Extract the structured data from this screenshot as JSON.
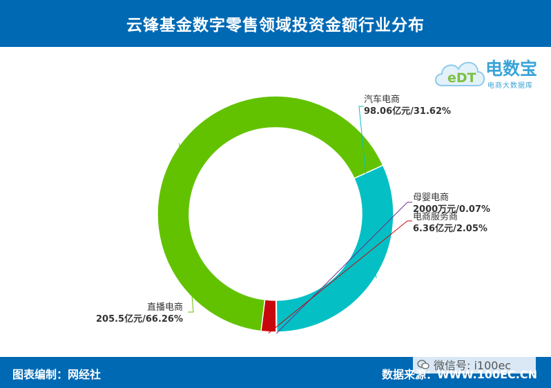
{
  "colors": {
    "header_bg": "#0069b4",
    "footer_bg": "#0069b4",
    "series": [
      "#04c0c5",
      "#6a2c91",
      "#c8070d",
      "#62c200"
    ]
  },
  "header": {
    "title": "云锋基金数字零售领域投资金额行业分布"
  },
  "footer": {
    "credit": "图表编制：网经社",
    "source": "数据来源：WWW.100EC.CN"
  },
  "watermark": {
    "icon": "wechat-icon",
    "text": "微信号: i100ec"
  },
  "logo": {
    "icon": "cloud-edt-icon",
    "logo_letters": "eDT",
    "name": "电数宝",
    "subtitle": "电商大数据库"
  },
  "chart_data": {
    "type": "pie",
    "style": "donut",
    "title": "云锋基金数字零售领域投资金额行业分布",
    "start_angle_deg": -24.4,
    "slices": [
      {
        "name": "汽车电商",
        "value_label": "98.06亿元/31.62%",
        "percent": 31.62
      },
      {
        "name": "母婴电商",
        "value_label": "2000万元/0.07%",
        "percent": 0.07
      },
      {
        "name": "电商服务商",
        "value_label": "6.36亿元/2.05%",
        "percent": 2.05
      },
      {
        "name": "直播电商",
        "value_label": "205.5亿元/66.26%",
        "percent": 66.26
      }
    ]
  }
}
